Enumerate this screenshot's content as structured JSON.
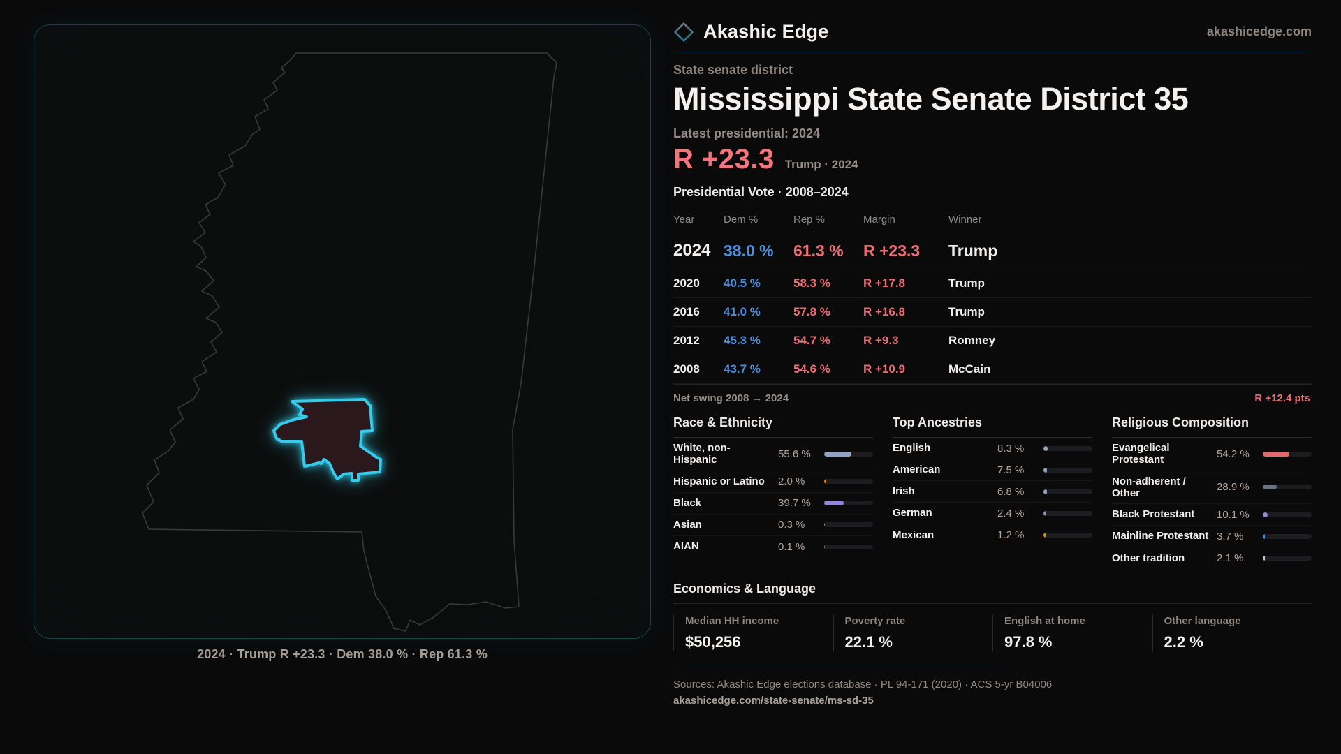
{
  "brand": {
    "name": "Akashic Edge",
    "domain": "akashicedge.com"
  },
  "header": {
    "kicker": "State senate district",
    "title": "Mississippi State Senate District 35",
    "latest_label": "Latest presidential: 2024",
    "margin_big": "R +23.3",
    "margin_context": "Trump · 2024"
  },
  "vote_table": {
    "title": "Presidential Vote · 2008–2024",
    "columns": [
      "Year",
      "Dem %",
      "Rep %",
      "Margin",
      "Winner"
    ],
    "rows": [
      {
        "year": "2024",
        "dem": "38.0 %",
        "rep": "61.3 %",
        "margin": "R +23.3",
        "winner": "Trump"
      },
      {
        "year": "2020",
        "dem": "40.5 %",
        "rep": "58.3 %",
        "margin": "R +17.8",
        "winner": "Trump"
      },
      {
        "year": "2016",
        "dem": "41.0 %",
        "rep": "57.8 %",
        "margin": "R +16.8",
        "winner": "Trump"
      },
      {
        "year": "2012",
        "dem": "45.3 %",
        "rep": "54.7 %",
        "margin": "R +9.3",
        "winner": "Romney"
      },
      {
        "year": "2008",
        "dem": "43.7 %",
        "rep": "54.6 %",
        "margin": "R +10.9",
        "winner": "McCain"
      }
    ]
  },
  "net_swing": {
    "label": "Net swing 2008 → 2024",
    "value": "R +12.4 pts"
  },
  "demographics": {
    "groups": [
      {
        "title": "Race & Ethnicity",
        "rows": [
          {
            "label": "White, non-Hispanic",
            "value": "55.6 %",
            "pct": 55.6,
            "color": "#92a4c4"
          },
          {
            "label": "Hispanic or Latino",
            "value": "2.0 %",
            "pct": 2.0,
            "color": "#cf8a2e"
          },
          {
            "label": "Black",
            "value": "39.7 %",
            "pct": 39.7,
            "color": "#9486e2"
          },
          {
            "label": "Asian",
            "value": "0.3 %",
            "pct": 0.3,
            "color": "#8a8a8a"
          },
          {
            "label": "AIAN",
            "value": "0.1 %",
            "pct": 0.1,
            "color": "#8a8a8a"
          }
        ]
      },
      {
        "title": "Top Ancestries",
        "rows": [
          {
            "label": "English",
            "value": "8.3 %",
            "pct": 8.3,
            "color": "#8fa3c0"
          },
          {
            "label": "American",
            "value": "7.5 %",
            "pct": 7.5,
            "color": "#8fa3c0"
          },
          {
            "label": "Irish",
            "value": "6.8 %",
            "pct": 6.8,
            "color": "#8fa3c0"
          },
          {
            "label": "German",
            "value": "2.4 %",
            "pct": 2.4,
            "color": "#7d96b8"
          },
          {
            "label": "Mexican",
            "value": "1.2 %",
            "pct": 1.2,
            "color": "#cf8a2e"
          }
        ]
      },
      {
        "title": "Religious Composition",
        "rows": [
          {
            "label": "Evangelical Protestant",
            "value": "54.2 %",
            "pct": 54.2,
            "color": "#e4696f"
          },
          {
            "label": "Non-adherent / Other",
            "value": "28.9 %",
            "pct": 28.9,
            "color": "#6b7380"
          },
          {
            "label": "Black Protestant",
            "value": "10.1 %",
            "pct": 10.1,
            "color": "#9486e2"
          },
          {
            "label": "Mainline Protestant",
            "value": "3.7 %",
            "pct": 3.7,
            "color": "#4d8fdc"
          },
          {
            "label": "Other tradition",
            "value": "2.1 %",
            "pct": 2.1,
            "color": "#c9c9c9"
          }
        ]
      }
    ]
  },
  "economics": {
    "title": "Economics & Language",
    "stats": [
      {
        "label": "Median HH income",
        "value": "$50,256"
      },
      {
        "label": "Poverty rate",
        "value": "22.1 %"
      },
      {
        "label": "English at home",
        "value": "97.8 %"
      },
      {
        "label": "Other language",
        "value": "2.2 %"
      }
    ]
  },
  "map": {
    "caption": "2024 · Trump R +23.3 · Dem 38.0 % · Rep 61.3 %"
  },
  "footer": {
    "sources": "Sources: Akashic Edge elections database · PL 94-171 (2020) · ACS 5-yr B04006",
    "url": "akashicedge.com/state-senate/ms-sd-35"
  },
  "colors": {
    "dem_blue": "#4d8fdc",
    "rep_red": "#ee6d74",
    "accent_teal": "#1a5b68",
    "district_cyan": "#35cbea"
  }
}
